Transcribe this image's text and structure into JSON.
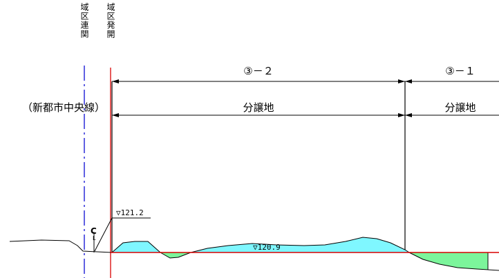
{
  "labels": {
    "vertical_left": "域区連関",
    "vertical_right": "域区発開",
    "road_label": "（新都市中央線）",
    "lot_3_2": "③－２",
    "lot_3_1": "③－１",
    "subdivision_1": "分譲地",
    "subdivision_2": "分譲地",
    "elev_high": "▽121.2",
    "elev_plan": "▽120.9",
    "centerline": "C",
    "centerline_sub": "L"
  },
  "colors": {
    "cut_fill": "#7ff7ff",
    "fill_area": "#7cf59b",
    "plan_line": "#d80000",
    "related_boundary": "#2b2bd8",
    "development_boundary": "#d80000",
    "lines": "#000000"
  }
}
